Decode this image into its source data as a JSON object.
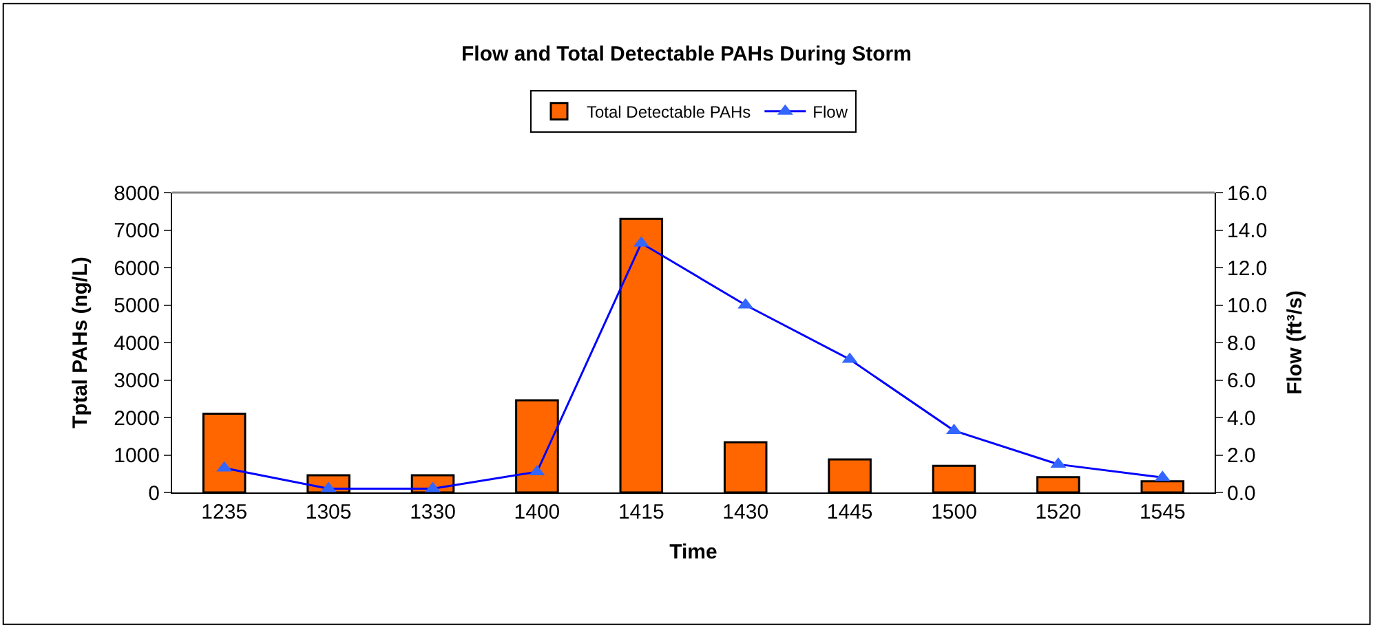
{
  "chart_data": {
    "type": "bar",
    "title": "Flow and Total Detectable PAHs During Storm",
    "xlabel": "Time",
    "ylabel": "Tptal PAHs (ng/L)",
    "y2label": "Flow (ft³/s)",
    "categories": [
      "1235",
      "1305",
      "1330",
      "1400",
      "1415",
      "1430",
      "1445",
      "1500",
      "1520",
      "1545"
    ],
    "series": [
      {
        "name": "Total Detectable PAHs",
        "color": "#ff6600",
        "values": [
          2100,
          460,
          460,
          2460,
          7300,
          1340,
          880,
          710,
          410,
          300
        ]
      },
      {
        "name": "Flow",
        "type": "line",
        "axis": "y2",
        "color": "#0000ff",
        "marker": "triangle",
        "values": [
          1.3,
          0.2,
          0.2,
          1.1,
          13.3,
          10.0,
          7.1,
          3.3,
          1.5,
          0.8
        ]
      }
    ],
    "ylim": [
      0,
      8000
    ],
    "yticks": [
      0,
      1000,
      2000,
      3000,
      4000,
      5000,
      6000,
      7000,
      8000
    ],
    "y2lim": [
      0,
      16
    ],
    "y2ticks": [
      {
        "value": 0,
        "label": "0.0"
      },
      {
        "value": 2,
        "label": "2.0"
      },
      {
        "value": 4,
        "label": "4.0"
      },
      {
        "value": 6,
        "label": "6.0"
      },
      {
        "value": 8,
        "label": "8.0"
      },
      {
        "value": 10,
        "label": "10.0"
      },
      {
        "value": 12,
        "label": "12.0"
      },
      {
        "value": 14,
        "label": "14.0"
      },
      {
        "value": 16,
        "label": "16.0"
      }
    ],
    "legend": "top"
  }
}
